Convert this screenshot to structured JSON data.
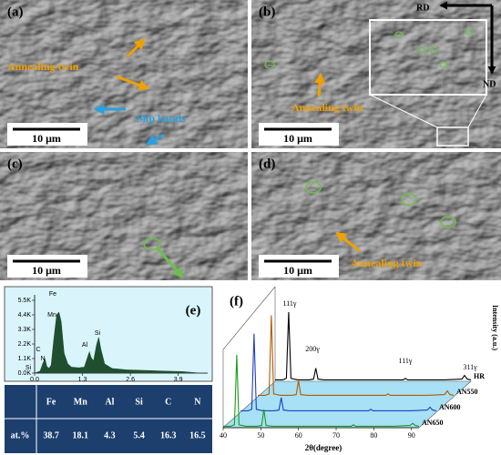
{
  "images": [
    {
      "label": "(a)",
      "texts": [
        "Annealing twin",
        "Slip bands"
      ],
      "scale_bar": "10 μm"
    },
    {
      "label": "(b)",
      "texts": [
        "RD",
        "ND",
        "Annealing twin"
      ],
      "scale_bar": "10 μm"
    },
    {
      "label": "(c)",
      "scale_bar": "10 μm"
    },
    {
      "label": "(d)",
      "texts": [
        "Annealing twin"
      ],
      "scale_bar": "10 μm"
    }
  ],
  "chart_data": [
    {
      "type": "area",
      "panel_label": "(e)",
      "x": [
        0,
        0.15,
        0.22,
        0.28,
        0.33,
        0.39,
        0.45,
        0.52,
        0.6,
        0.66,
        0.72,
        0.8,
        0.9,
        1.0,
        1.2,
        1.35,
        1.45,
        1.49,
        1.53,
        1.6,
        1.68,
        1.74,
        1.8,
        1.9,
        2.1,
        2.5,
        3.0,
        3.5,
        4.0,
        4.5
      ],
      "values": [
        0,
        150,
        700,
        1100,
        500,
        350,
        600,
        2500,
        4400,
        4600,
        3900,
        1500,
        700,
        450,
        400,
        450,
        1300,
        1600,
        1200,
        900,
        2100,
        2700,
        1800,
        700,
        350,
        250,
        200,
        150,
        120,
        0
      ],
      "color": "#1f4f2f",
      "peak_labels": [
        "Fe",
        "Mn",
        "C",
        "N",
        "Si",
        "Al",
        "Si"
      ],
      "xlim": [
        0,
        4.7
      ],
      "xticks": [
        {
          "value": 0,
          "label": "0.0"
        },
        1.3,
        2.6,
        3.9
      ],
      "ylim": [
        0,
        5500
      ],
      "yticks": [
        {
          "value": 0,
          "label": "0.0K"
        },
        {
          "value": 1100,
          "label": "1.1K"
        },
        {
          "value": 2200,
          "label": "2.2K"
        },
        {
          "value": 3300,
          "label": "3.3K"
        },
        {
          "value": 4400,
          "label": "4.4K"
        },
        {
          "value": 5500,
          "label": "5.5K"
        }
      ]
    },
    {
      "type": "line",
      "panel_label": "(f)",
      "y_label": "Intensity (a.u.)",
      "x_label": "2θ(degree)",
      "peak_labels": [
        "111γ",
        "200γ",
        "111γ",
        "311γ"
      ],
      "x": [
        40,
        42,
        43,
        43.6,
        44.2,
        46,
        49,
        50.2,
        50.8,
        51.4,
        53,
        60,
        70,
        74,
        74.6,
        75.2,
        80,
        85,
        89.6,
        90.3,
        91,
        92
      ],
      "series": [
        {
          "name": "HR",
          "color": "#000000",
          "values": [
            2,
            2,
            4,
            95,
            4,
            2,
            2,
            3,
            18,
            3,
            2,
            2,
            2,
            2,
            4,
            2,
            2,
            2,
            3,
            8,
            3,
            2
          ]
        },
        {
          "name": "AN550",
          "color": "#b35a00",
          "values": [
            2,
            2,
            4,
            112,
            4,
            2,
            2,
            3,
            22,
            3,
            2,
            2,
            2,
            2,
            4,
            2,
            2,
            2,
            3,
            8,
            3,
            2
          ]
        },
        {
          "name": "AN600",
          "color": "#1f3fbf",
          "values": [
            2,
            2,
            4,
            108,
            4,
            2,
            2,
            3,
            20,
            3,
            2,
            2,
            2,
            2,
            4,
            2,
            2,
            2,
            3,
            7,
            3,
            2
          ]
        },
        {
          "name": "AN650",
          "color": "#1a9a1a",
          "values": [
            2,
            2,
            4,
            100,
            4,
            2,
            2,
            3,
            25,
            3,
            2,
            2,
            2,
            2,
            4,
            2,
            2,
            2,
            3,
            6,
            3,
            2
          ]
        }
      ],
      "floor_color": "#a8e0f5",
      "xlim": [
        40,
        92
      ],
      "xticks": [
        40,
        50,
        60,
        70,
        80,
        90
      ],
      "ylim": [
        0,
        120
      ]
    }
  ],
  "table": {
    "columns": [
      "Fe",
      "Mn",
      "Al",
      "Si",
      "C",
      "N"
    ],
    "rows": [
      {
        "label": "at.%",
        "values": [
          38.7,
          18.1,
          4.3,
          5.4,
          16.3,
          16.5
        ]
      }
    ]
  }
}
